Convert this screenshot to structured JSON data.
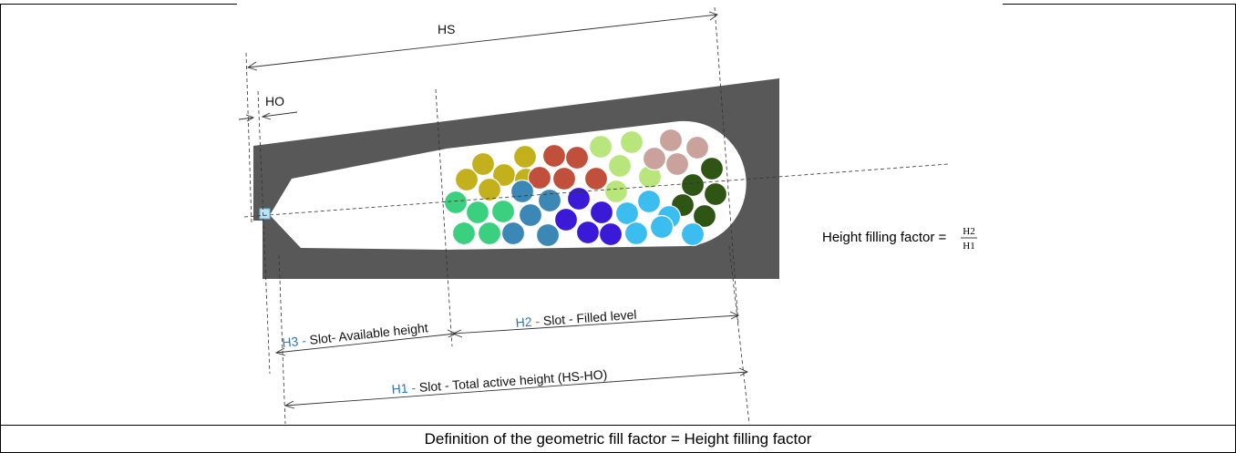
{
  "labels": {
    "hs": "HS",
    "ho": "HO",
    "h3_prefix": "H3 - ",
    "h3_text": "Slot- Available height",
    "h2_prefix": "H2 - ",
    "h2_text": "Slot - Filled level",
    "h1_prefix": "H1 - ",
    "h1_text": "Slot - Total active height (HS-HO)"
  },
  "formula": {
    "text": "Height filling factor = ",
    "numerator": "H2",
    "denominator": "H1"
  },
  "caption": "Definition of the geometric fill factor = Height filling factor",
  "colors": {
    "slot_body": "#585858",
    "label_accent": "#2e75b6",
    "conductor_groups": [
      "#c2b11c",
      "#c0503c",
      "#b9e57d",
      "#c9a29c",
      "#2f5514",
      "#3bd080",
      "#3b87b5",
      "#3a1ad6",
      "#3cbdf0"
    ]
  }
}
